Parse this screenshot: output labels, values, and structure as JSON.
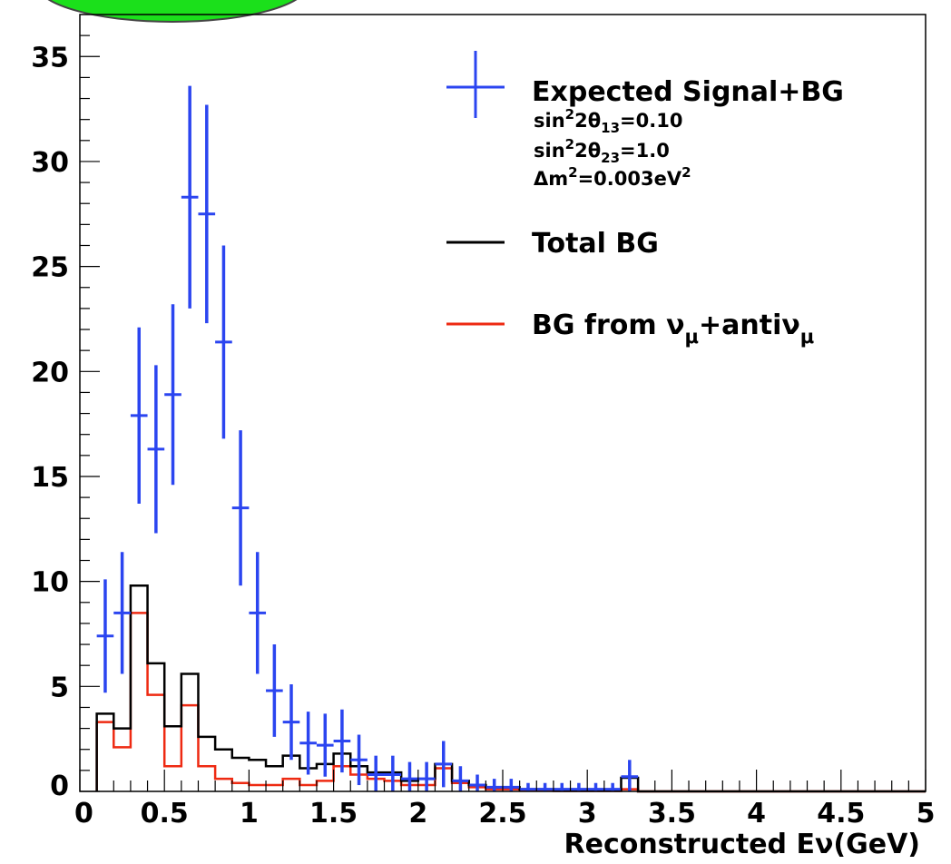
{
  "chart_data": {
    "type": "histogram",
    "xlabel": "Reconstructed Eν(GeV)",
    "ylabel": "",
    "xlim": [
      0,
      5
    ],
    "ylim": [
      0,
      37
    ],
    "x_ticks": [
      "0",
      "0.5",
      "1",
      "1.5",
      "2",
      "2.5",
      "3",
      "3.5",
      "4",
      "4.5",
      "5"
    ],
    "y_ticks": [
      "0",
      "5",
      "10",
      "15",
      "20",
      "25",
      "30",
      "35"
    ],
    "legend_position": "top-right",
    "grid": false,
    "bin_width": 0.1,
    "bin_centers": [
      0.15,
      0.25,
      0.35,
      0.45,
      0.55,
      0.65,
      0.75,
      0.85,
      0.95,
      1.05,
      1.15,
      1.25,
      1.35,
      1.45,
      1.55,
      1.65,
      1.75,
      1.85,
      1.95,
      2.05,
      2.15,
      2.25,
      2.35,
      2.45,
      2.55,
      2.65,
      2.75,
      2.85,
      2.95,
      3.05,
      3.15,
      3.25,
      3.35,
      3.45,
      3.55,
      3.65,
      3.75,
      3.85,
      3.95,
      4.05,
      4.15,
      4.25,
      4.35,
      4.45,
      4.55,
      4.65,
      4.75,
      4.85,
      4.95
    ],
    "series": [
      {
        "name": "Expected Signal+BG",
        "style": "points-with-errors",
        "color": "#2b45f0",
        "values": [
          7.4,
          8.5,
          17.9,
          16.3,
          18.9,
          28.3,
          27.5,
          21.4,
          13.5,
          8.5,
          4.8,
          3.3,
          2.3,
          2.2,
          2.4,
          1.5,
          0.8,
          0.8,
          0.6,
          0.6,
          1.3,
          0.5,
          0.3,
          0.2,
          0.2,
          0.1,
          0.1,
          0.1,
          0.1,
          0.1,
          0.1,
          0.7,
          0,
          0,
          0,
          0,
          0,
          0,
          0,
          0,
          0,
          0,
          0,
          0,
          0,
          0,
          0,
          0,
          0
        ],
        "errors": [
          2.7,
          2.9,
          4.2,
          4.0,
          4.3,
          5.3,
          5.2,
          4.6,
          3.7,
          2.9,
          2.2,
          1.8,
          1.5,
          1.5,
          1.5,
          1.2,
          0.9,
          0.9,
          0.8,
          0.8,
          1.1,
          0.7,
          0.5,
          0.4,
          0.4,
          0.3,
          0.3,
          0.3,
          0.3,
          0.3,
          0.3,
          0.8,
          0,
          0,
          0,
          0,
          0,
          0,
          0,
          0,
          0,
          0,
          0,
          0,
          0,
          0,
          0,
          0,
          0
        ]
      },
      {
        "name": "Total BG",
        "style": "step",
        "color": "#000000",
        "values": [
          3.7,
          3.0,
          9.8,
          6.1,
          3.1,
          5.6,
          2.6,
          2.0,
          1.6,
          1.5,
          1.2,
          1.7,
          1.1,
          1.3,
          1.8,
          1.2,
          0.9,
          0.9,
          0.5,
          0.6,
          1.3,
          0.5,
          0.3,
          0.2,
          0.2,
          0.1,
          0.1,
          0.05,
          0.05,
          0.05,
          0.05,
          0.65,
          0,
          0,
          0,
          0,
          0,
          0,
          0,
          0,
          0,
          0,
          0,
          0,
          0,
          0,
          0,
          0,
          0
        ]
      },
      {
        "name": "BG from νμ+antiνμ",
        "style": "step",
        "color": "#ee2a12",
        "values": [
          3.3,
          2.1,
          8.5,
          4.6,
          1.2,
          4.1,
          1.2,
          0.6,
          0.4,
          0.3,
          0.3,
          0.6,
          0.3,
          0.5,
          1.2,
          0.8,
          0.6,
          0.5,
          0.3,
          0.3,
          1.1,
          0.4,
          0.2,
          0.1,
          0.1,
          0.05,
          0.05,
          0.02,
          0.02,
          0.02,
          0.02,
          0.1,
          0,
          0,
          0,
          0,
          0,
          0,
          0,
          0,
          0,
          0,
          0,
          0,
          0,
          0,
          0,
          0,
          0
        ]
      }
    ],
    "legend": {
      "signal_label": "Expected Signal+BG",
      "params": [
        {
          "lhs": "sin",
          "sup": "2",
          "mid": "2θ",
          "sub": "13",
          "rhs": "=0.10"
        },
        {
          "lhs": "sin",
          "sup": "2",
          "mid": "2θ",
          "sub": "23",
          "rhs": "=1.0"
        },
        {
          "lhs": "Δm",
          "sup": "2",
          "mid": "=0.003eV",
          "sub": "",
          "rhs": "",
          "tail_sup": "2"
        }
      ],
      "total_bg_label": "Total BG",
      "numu_label": {
        "pre": "BG from ν",
        "sub1": "μ",
        "mid": "+antiν",
        "sub2": "μ"
      }
    },
    "corner_blob_color": "#1be01b"
  }
}
